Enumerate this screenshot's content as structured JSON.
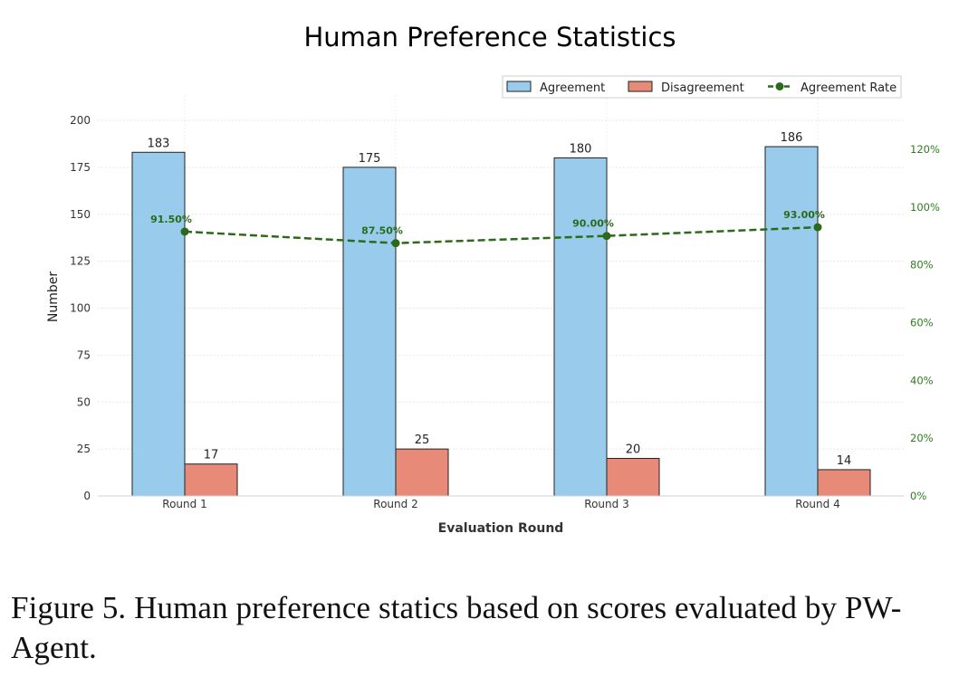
{
  "colors": {
    "agreement": "#99ccec",
    "disagreement": "#e88a78",
    "rate": "#2b6a1b",
    "right_axis": "#2e7d1e"
  },
  "chart_data": {
    "type": "bar",
    "title": "Human Preference Statistics",
    "xlabel": "Evaluation Round",
    "ylabel": "Number",
    "categories": [
      "Round 1",
      "Round 2",
      "Round 3",
      "Round 4"
    ],
    "series": [
      {
        "name": "Agreement",
        "type": "bar",
        "values": [
          183,
          175,
          180,
          186
        ]
      },
      {
        "name": "Disagreement",
        "type": "bar",
        "values": [
          17,
          25,
          20,
          14
        ]
      },
      {
        "name": "Agreement Rate",
        "type": "line",
        "axis": "right",
        "values": [
          91.5,
          87.5,
          90.0,
          93.0
        ],
        "labels": [
          "91.50%",
          "87.50%",
          "90.00%",
          "93.00%"
        ]
      }
    ],
    "ylim": [
      0,
      200
    ],
    "yticks": [
      "0",
      "25",
      "50",
      "75",
      "100",
      "125",
      "150",
      "175",
      "200"
    ],
    "y2lim": [
      0,
      130
    ],
    "y2ticks": [
      "0%",
      "20%",
      "40%",
      "60%",
      "80%",
      "100%",
      "120%"
    ],
    "legend": [
      "Agreement",
      "Disagreement",
      "Agreement Rate"
    ],
    "legend_position": "top-right",
    "grid": true
  },
  "caption": "Figure 5. Human preference statics based on scores evaluated by PW-Agent."
}
